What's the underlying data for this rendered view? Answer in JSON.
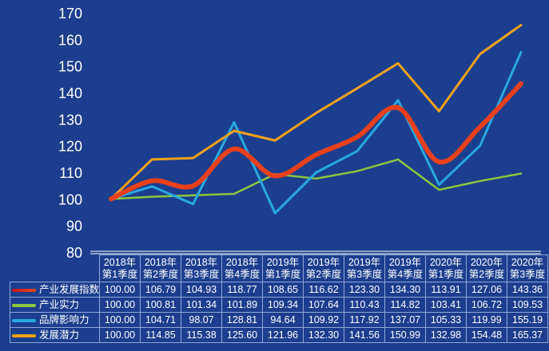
{
  "chart_data": {
    "type": "line",
    "title": "",
    "xlabel": "",
    "ylabel": "",
    "ylim": [
      80,
      170
    ],
    "yticks": [
      80,
      90,
      100,
      110,
      120,
      130,
      140,
      150,
      160,
      170
    ],
    "categories": [
      [
        "2018年",
        "第1季度"
      ],
      [
        "2018年",
        "第2季度"
      ],
      [
        "2018年",
        "第3季度"
      ],
      [
        "2018年",
        "第4季度"
      ],
      [
        "2019年",
        "第1季度"
      ],
      [
        "2019年",
        "第2季度"
      ],
      [
        "2019年",
        "第3季度"
      ],
      [
        "2019年",
        "第4季度"
      ],
      [
        "2020年",
        "第1季度"
      ],
      [
        "2020年",
        "第2季度"
      ],
      [
        "2020年",
        "第3季度"
      ]
    ],
    "series": [
      {
        "name": "产业发展指数",
        "color": "#e8401c",
        "values": [
          "100.00",
          "106.79",
          "104.93",
          "118.77",
          "108.65",
          "116.62",
          "123.30",
          "134.30",
          "113.91",
          "127.06",
          "143.36"
        ]
      },
      {
        "name": "产业实力",
        "color": "#8cc63f",
        "values": [
          "100.00",
          "100.81",
          "101.34",
          "101.89",
          "109.34",
          "107.64",
          "110.43",
          "114.82",
          "103.41",
          "106.72",
          "109.53"
        ]
      },
      {
        "name": "品牌影响力",
        "color": "#29a8e0",
        "values": [
          "100.00",
          "104.71",
          "98.07",
          "128.81",
          "94.64",
          "109.92",
          "117.92",
          "137.07",
          "105.33",
          "119.99",
          "155.19"
        ]
      },
      {
        "name": "发展潜力",
        "color": "#f5a21b",
        "values": [
          "100.00",
          "114.85",
          "115.38",
          "125.60",
          "121.96",
          "132.30",
          "141.56",
          "150.99",
          "132.98",
          "154.48",
          "165.37"
        ]
      }
    ],
    "legend": "data-table",
    "grid": false
  }
}
